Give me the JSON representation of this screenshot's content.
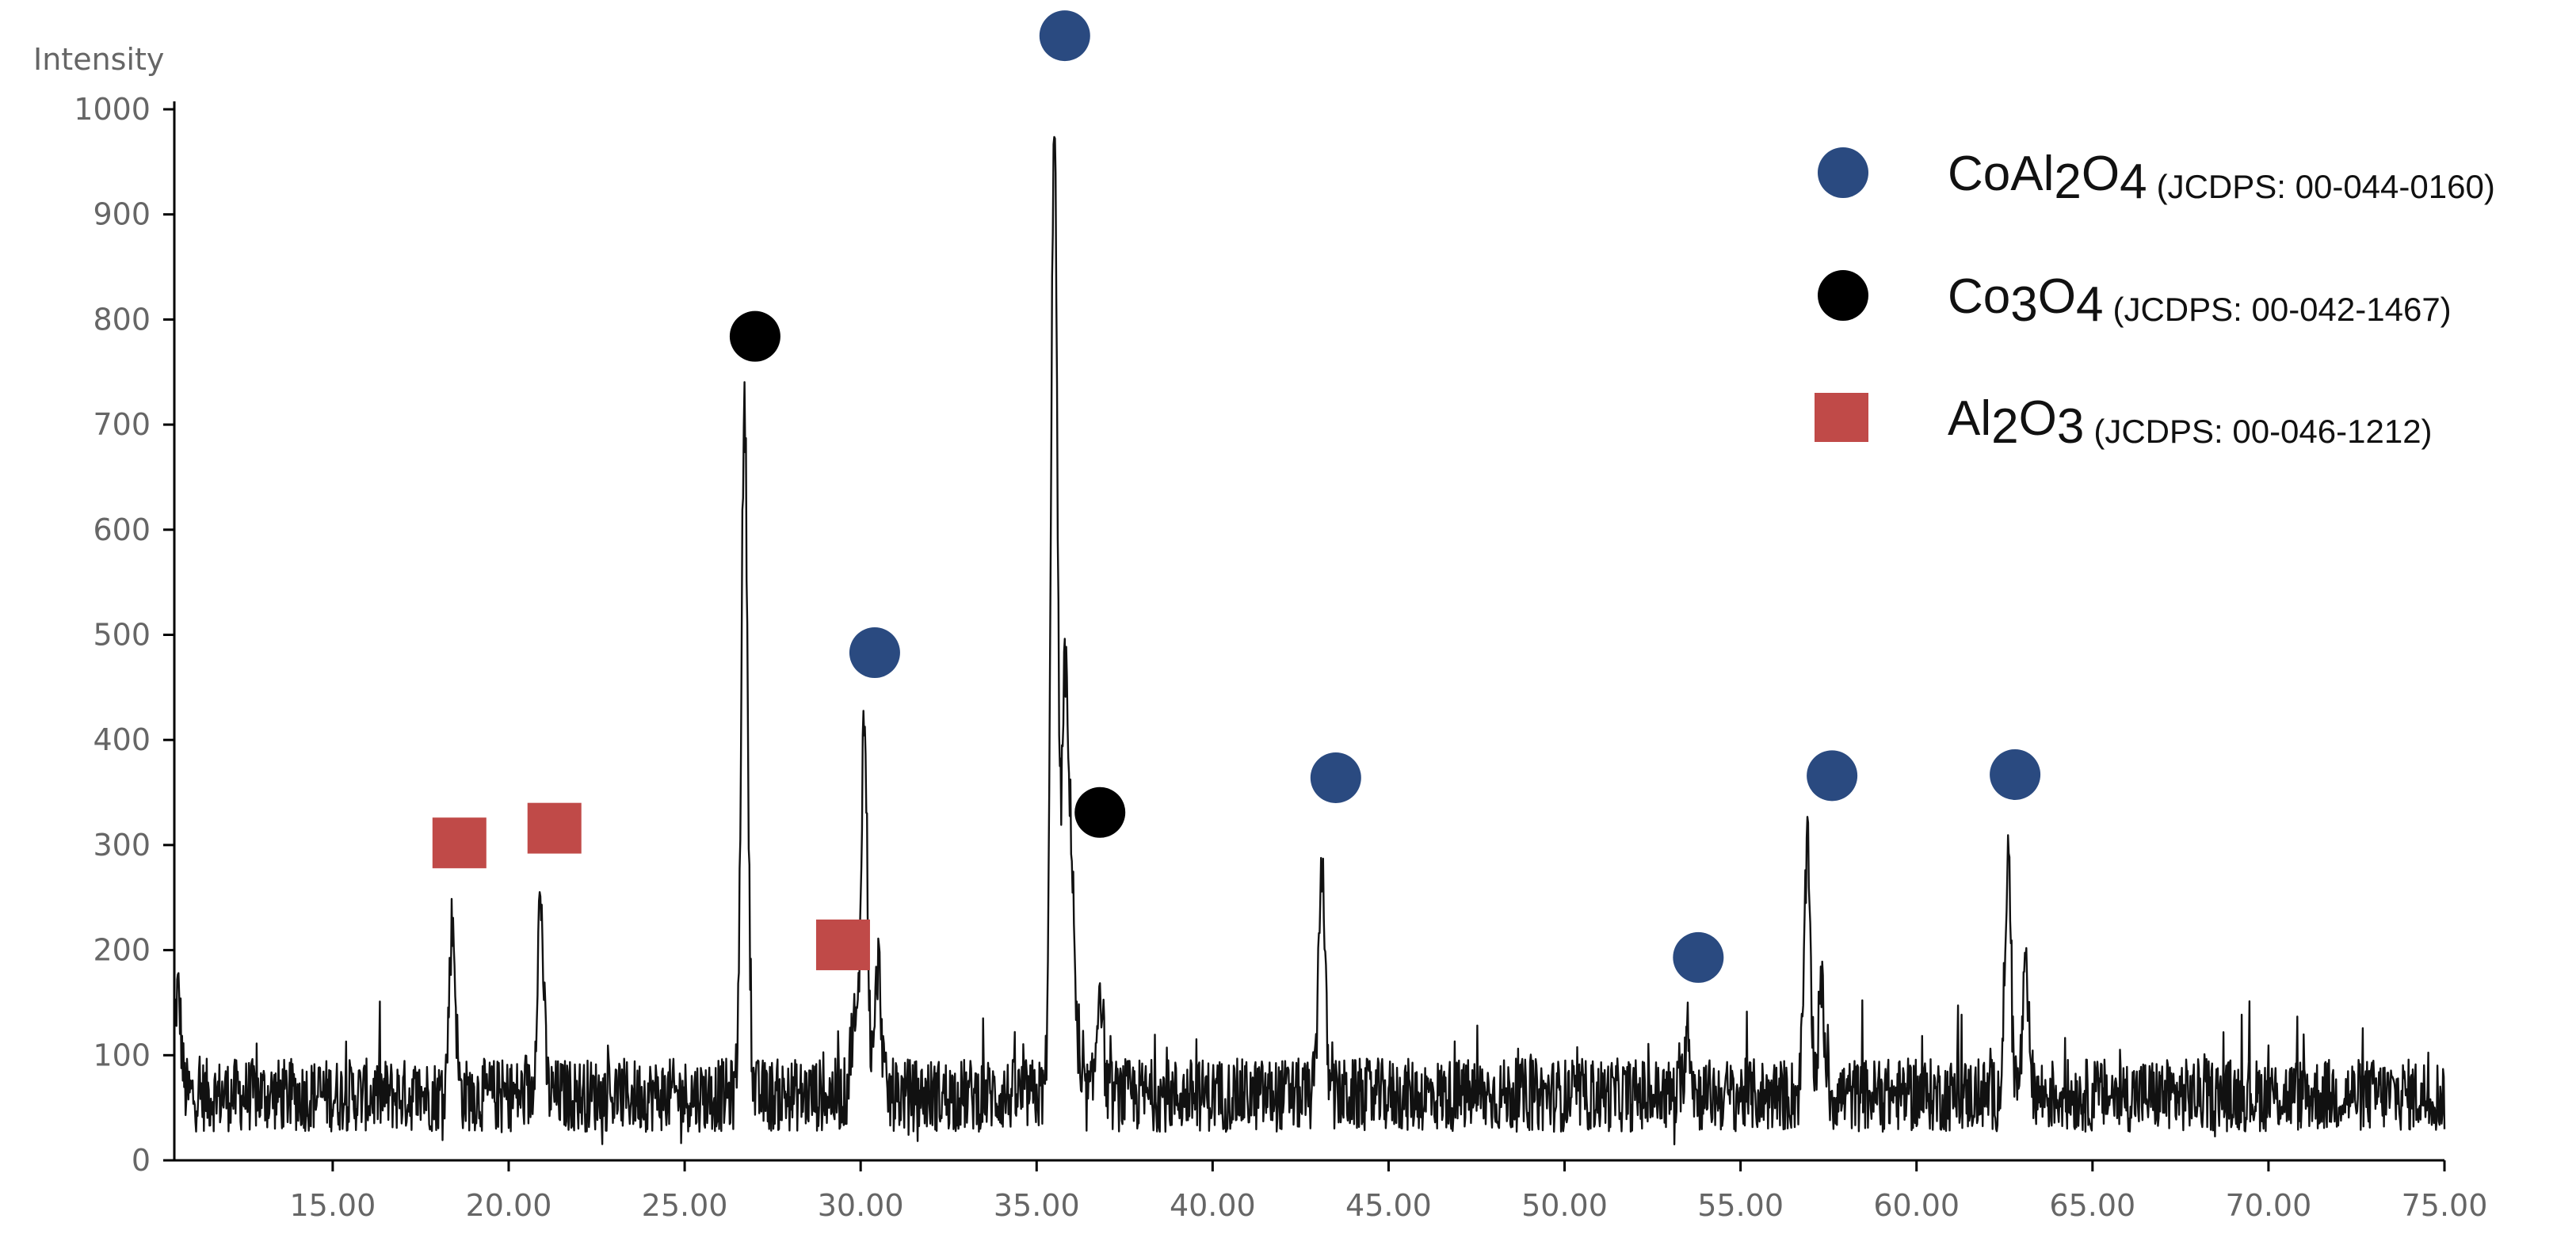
{
  "chart_data": {
    "type": "line",
    "ylabel": "Intensity",
    "xlabel": "",
    "xlim": [
      10.5,
      75.0
    ],
    "ylim": [
      0,
      1000
    ],
    "x_ticks": [
      "15.00",
      "20.00",
      "25.00",
      "30.00",
      "35.00",
      "40.00",
      "45.00",
      "50.00",
      "55.00",
      "60.00",
      "65.00",
      "70.00",
      "75.00"
    ],
    "x_tick_values": [
      15,
      20,
      25,
      30,
      35,
      40,
      45,
      50,
      55,
      60,
      65,
      70,
      75
    ],
    "y_ticks": [
      "0",
      "100",
      "200",
      "300",
      "400",
      "500",
      "600",
      "700",
      "800",
      "900",
      "1000"
    ],
    "y_tick_values": [
      0,
      100,
      200,
      300,
      400,
      500,
      600,
      700,
      800,
      900,
      1000
    ],
    "grid": false,
    "legend_position": "top-right",
    "colors": {
      "CoAl2O4": "#2a4a80",
      "Co3O4": "#000000",
      "Al2O3": "#c04a48",
      "trace": "#111111"
    },
    "baseline": 62,
    "peaks": [
      {
        "x": 10.6,
        "y": 160
      },
      {
        "x": 18.4,
        "y": 225
      },
      {
        "x": 20.9,
        "y": 248
      },
      {
        "x": 26.7,
        "y": 717
      },
      {
        "x": 29.8,
        "y": 130
      },
      {
        "x": 30.1,
        "y": 418
      },
      {
        "x": 30.5,
        "y": 185
      },
      {
        "x": 35.5,
        "y": 1000
      },
      {
        "x": 35.8,
        "y": 450
      },
      {
        "x": 36.0,
        "y": 270
      },
      {
        "x": 36.8,
        "y": 170
      },
      {
        "x": 43.1,
        "y": 285
      },
      {
        "x": 53.5,
        "y": 125
      },
      {
        "x": 56.9,
        "y": 292
      },
      {
        "x": 57.3,
        "y": 160
      },
      {
        "x": 62.6,
        "y": 285
      },
      {
        "x": 63.1,
        "y": 170
      }
    ],
    "series": [
      {
        "name": "CoAl2O4",
        "marker": "circle",
        "points": [
          {
            "x": 35.8,
            "y": 1070
          },
          {
            "x": 30.4,
            "y": 483
          },
          {
            "x": 43.5,
            "y": 364
          },
          {
            "x": 53.8,
            "y": 193
          },
          {
            "x": 57.6,
            "y": 366
          },
          {
            "x": 62.8,
            "y": 367
          }
        ]
      },
      {
        "name": "Co3O4",
        "marker": "circle",
        "points": [
          {
            "x": 27.0,
            "y": 784
          },
          {
            "x": 36.8,
            "y": 331
          }
        ]
      },
      {
        "name": "Al2O3",
        "marker": "square",
        "points": [
          {
            "x": 18.6,
            "y": 302
          },
          {
            "x": 21.3,
            "y": 316
          },
          {
            "x": 29.5,
            "y": 205
          }
        ]
      }
    ],
    "legend": [
      {
        "formula": [
          "Co",
          "Al",
          "2",
          "O",
          "4"
        ],
        "ref": "(JCDPS: 00-044-0160)",
        "marker": "circle",
        "color_key": "CoAl2O4"
      },
      {
        "formula": [
          "Co",
          "3",
          "O",
          "4"
        ],
        "ref": "(JCDPS: 00-042-1467)",
        "marker": "circle",
        "color_key": "Co3O4"
      },
      {
        "formula": [
          "Al",
          "2",
          "O",
          "3"
        ],
        "ref": "(JCDPS: 00-046-1212)",
        "marker": "square",
        "color_key": "Al2O3"
      }
    ]
  }
}
